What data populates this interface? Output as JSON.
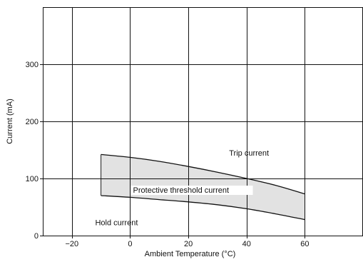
{
  "chart_data": {
    "type": "area",
    "title": "",
    "xlabel": "Ambient Temperature (°C)",
    "ylabel": "Current (mA)",
    "xlim": [
      -30,
      80
    ],
    "ylim": [
      0,
      400
    ],
    "xticks": [
      -20,
      0,
      20,
      40,
      60
    ],
    "yticks": [
      0,
      100,
      200,
      300
    ],
    "xtick_labels": [
      "−20",
      "0",
      "20",
      "40",
      "60"
    ],
    "ytick_labels": [
      "0",
      "100",
      "200",
      "300"
    ],
    "grid": true,
    "series": [
      {
        "name": "Trip current",
        "x": [
          -10,
          0,
          10,
          20,
          30,
          40,
          50,
          60
        ],
        "y": [
          142,
          137,
          130,
          121,
          111,
          100,
          88,
          73
        ]
      },
      {
        "name": "Hold current",
        "x": [
          -10,
          0,
          10,
          20,
          30,
          40,
          50,
          60
        ],
        "y": [
          70,
          67,
          63,
          59,
          54,
          47,
          38,
          28
        ]
      }
    ],
    "shaded_region": {
      "label": "Protective threshold current",
      "color": "#e2e2e2"
    },
    "line_color": "#111111",
    "annotations": [
      {
        "text": "Trip current",
        "x": 34,
        "y": 140
      },
      {
        "text": "Protective threshold current",
        "x": 1,
        "y": 75
      },
      {
        "text": "Hold current",
        "x": -12,
        "y": 18
      }
    ]
  }
}
